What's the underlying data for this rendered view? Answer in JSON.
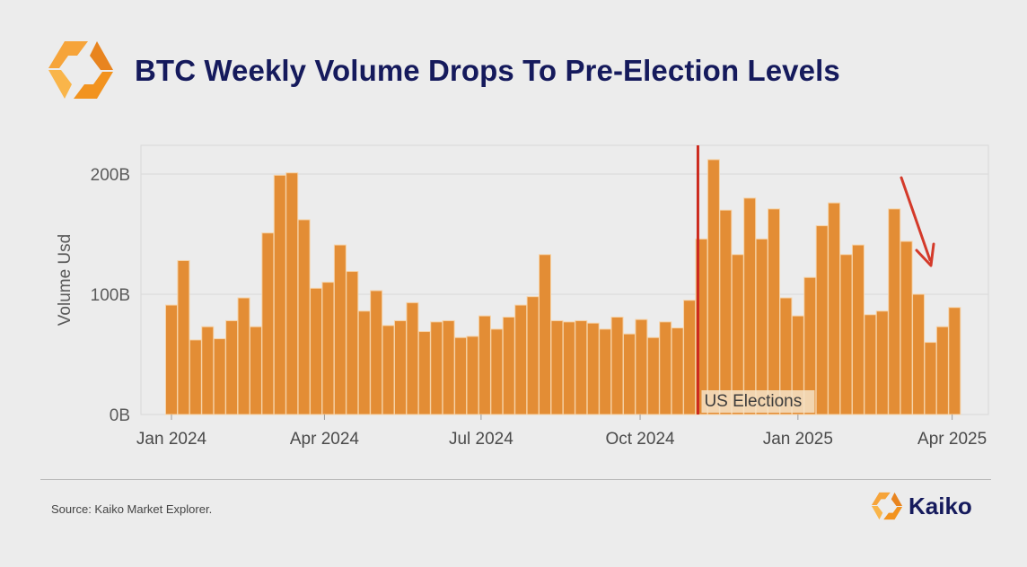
{
  "header": {
    "title": "BTC Weekly Volume Drops To Pre-Election Levels",
    "logo": "kaiko-logo-icon"
  },
  "footer": {
    "source": "Source: Kaiko Market Explorer.",
    "brand": "Kaiko"
  },
  "colors": {
    "bar": "#e38d35",
    "bar_edge": "#f6d3a8",
    "marker": "#cc2a1e",
    "arrow": "#d43a2a",
    "title": "#151a5c",
    "grid": "#d8d8d8"
  },
  "chart_data": {
    "type": "bar",
    "title": "BTC Weekly Volume Drops To Pre-Election Levels",
    "xlabel": "",
    "ylabel": "Volume Usd",
    "ylim": [
      0,
      225
    ],
    "y_unit": "B",
    "yticks": [
      {
        "value": 0,
        "label": "0B"
      },
      {
        "value": 100,
        "label": "100B"
      },
      {
        "value": 200,
        "label": "200B"
      }
    ],
    "xticks": [
      {
        "week": 0,
        "label": "Jan 2024"
      },
      {
        "week": 12.7,
        "label": "Apr 2024"
      },
      {
        "week": 25.7,
        "label": "Jul 2024"
      },
      {
        "week": 38.9,
        "label": "Oct 2024"
      },
      {
        "week": 52,
        "label": "Jan 2025"
      },
      {
        "week": 64.8,
        "label": "Apr 2025"
      }
    ],
    "grid": true,
    "annotation": {
      "label": "US Elections",
      "week": 43.7
    },
    "values": [
      91,
      128,
      62,
      73,
      63,
      78,
      97,
      73,
      151,
      199,
      201,
      162,
      105,
      110,
      141,
      119,
      86,
      103,
      74,
      78,
      93,
      69,
      77,
      78,
      64,
      65,
      82,
      71,
      81,
      91,
      98,
      133,
      78,
      77,
      78,
      76,
      71,
      81,
      67,
      79,
      64,
      77,
      72,
      95,
      146,
      212,
      170,
      133,
      180,
      146,
      171,
      97,
      82,
      114,
      157,
      176,
      133,
      141,
      83,
      86,
      171,
      144,
      100,
      60,
      73,
      89
    ]
  }
}
